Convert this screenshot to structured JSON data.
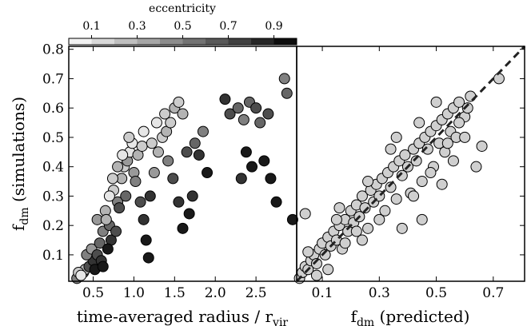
{
  "chart_data": [
    {
      "type": "scatter",
      "panel": "left",
      "xlabel": "time-averaged radius / r",
      "xlabel_sub": "vir",
      "ylabel": "f",
      "ylabel_sub": "dm",
      "ylabel_suffix": " (simulations)",
      "xlim": [
        0.2,
        3.0
      ],
      "ylim": [
        0.01,
        0.81
      ],
      "xticks": [
        "0.5",
        "1.0",
        "1.5",
        "2.0",
        "2.5"
      ],
      "xtick_values": [
        0.5,
        1.0,
        1.5,
        2.0,
        2.5
      ],
      "yticks": [
        "0.1",
        "0.2",
        "0.3",
        "0.4",
        "0.5",
        "0.6",
        "0.7",
        "0.8"
      ],
      "ytick_values": [
        0.1,
        0.2,
        0.3,
        0.4,
        0.5,
        0.6,
        0.7,
        0.8
      ],
      "grid": false,
      "points": [
        [
          0.3,
          0.02,
          0.5
        ],
        [
          0.38,
          0.04,
          0.6
        ],
        [
          0.4,
          0.05,
          0.3
        ],
        [
          0.45,
          0.06,
          0.7
        ],
        [
          0.5,
          0.08,
          0.8
        ],
        [
          0.42,
          0.1,
          0.5
        ],
        [
          0.48,
          0.12,
          0.4
        ],
        [
          0.55,
          0.1,
          0.7
        ],
        [
          0.6,
          0.08,
          0.8
        ],
        [
          0.52,
          0.05,
          0.9
        ],
        [
          0.58,
          0.14,
          0.6
        ],
        [
          0.62,
          0.18,
          0.5
        ],
        [
          0.55,
          0.22,
          0.4
        ],
        [
          0.65,
          0.25,
          0.3
        ],
        [
          0.7,
          0.2,
          0.6
        ],
        [
          0.72,
          0.15,
          0.8
        ],
        [
          0.68,
          0.12,
          0.9
        ],
        [
          0.78,
          0.18,
          0.7
        ],
        [
          0.8,
          0.28,
          0.5
        ],
        [
          0.75,
          0.32,
          0.2
        ],
        [
          0.85,
          0.36,
          0.3
        ],
        [
          0.88,
          0.4,
          0.2
        ],
        [
          0.92,
          0.42,
          0.4
        ],
        [
          0.95,
          0.45,
          0.1
        ],
        [
          0.98,
          0.48,
          0.1
        ],
        [
          0.9,
          0.3,
          0.6
        ],
        [
          0.82,
          0.26,
          0.7
        ],
        [
          1.0,
          0.38,
          0.4
        ],
        [
          1.05,
          0.44,
          0.3
        ],
        [
          1.1,
          0.47,
          0.2
        ],
        [
          1.02,
          0.35,
          0.5
        ],
        [
          1.08,
          0.28,
          0.7
        ],
        [
          1.12,
          0.22,
          0.8
        ],
        [
          1.15,
          0.15,
          0.9
        ],
        [
          1.18,
          0.09,
          0.9
        ],
        [
          1.2,
          0.3,
          0.8
        ],
        [
          1.25,
          0.38,
          0.4
        ],
        [
          1.3,
          0.45,
          0.3
        ],
        [
          1.35,
          0.5,
          0.2
        ],
        [
          1.4,
          0.52,
          0.3
        ],
        [
          1.45,
          0.55,
          0.2
        ],
        [
          1.5,
          0.6,
          0.3
        ],
        [
          1.55,
          0.62,
          0.2
        ],
        [
          1.42,
          0.42,
          0.5
        ],
        [
          1.48,
          0.36,
          0.7
        ],
        [
          1.55,
          0.28,
          0.8
        ],
        [
          1.6,
          0.19,
          0.9
        ],
        [
          1.68,
          0.24,
          0.9
        ],
        [
          1.72,
          0.3,
          0.8
        ],
        [
          1.65,
          0.45,
          0.7
        ],
        [
          1.75,
          0.48,
          0.6
        ],
        [
          1.85,
          0.52,
          0.5
        ],
        [
          1.8,
          0.44,
          0.8
        ],
        [
          1.9,
          0.38,
          0.9
        ],
        [
          2.12,
          0.63,
          0.8
        ],
        [
          2.18,
          0.58,
          0.7
        ],
        [
          2.28,
          0.6,
          0.6
        ],
        [
          2.35,
          0.56,
          0.5
        ],
        [
          2.42,
          0.62,
          0.6
        ],
        [
          2.5,
          0.6,
          0.7
        ],
        [
          2.55,
          0.55,
          0.6
        ],
        [
          2.65,
          0.58,
          0.7
        ],
        [
          2.38,
          0.45,
          0.9
        ],
        [
          2.45,
          0.4,
          0.9
        ],
        [
          2.32,
          0.36,
          0.8
        ],
        [
          2.6,
          0.42,
          0.9
        ],
        [
          2.68,
          0.36,
          0.9
        ],
        [
          2.75,
          0.28,
          0.9
        ],
        [
          2.85,
          0.7,
          0.5
        ],
        [
          2.88,
          0.65,
          0.6
        ],
        [
          2.95,
          0.22,
          0.9
        ],
        [
          0.32,
          0.04,
          0.2
        ],
        [
          0.35,
          0.03,
          0.1
        ],
        [
          0.62,
          0.06,
          0.9
        ],
        [
          0.66,
          0.22,
          0.3
        ],
        [
          0.7,
          0.3,
          0.1
        ],
        [
          0.74,
          0.36,
          0.2
        ],
        [
          0.8,
          0.4,
          0.3
        ],
        [
          0.86,
          0.44,
          0.1
        ],
        [
          0.94,
          0.5,
          0.2
        ],
        [
          1.12,
          0.52,
          0.1
        ],
        [
          1.22,
          0.48,
          0.2
        ],
        [
          1.28,
          0.55,
          0.1
        ],
        [
          1.38,
          0.58,
          0.2
        ],
        [
          1.6,
          0.58,
          0.3
        ]
      ]
    },
    {
      "type": "scatter",
      "panel": "right",
      "xlabel": "f",
      "xlabel_sub": "dm",
      "xlabel_suffix": " (predicted)",
      "xlim": [
        0.01,
        0.81
      ],
      "ylim": [
        0.01,
        0.81
      ],
      "xticks": [
        "0.1",
        "0.3",
        "0.5",
        "0.7"
      ],
      "xtick_values": [
        0.1,
        0.3,
        0.5,
        0.7
      ],
      "grid": false,
      "reference_line": "y = x, dashed",
      "points": [
        [
          0.02,
          0.02
        ],
        [
          0.03,
          0.04
        ],
        [
          0.04,
          0.06
        ],
        [
          0.05,
          0.05
        ],
        [
          0.06,
          0.08
        ],
        [
          0.07,
          0.1
        ],
        [
          0.08,
          0.07
        ],
        [
          0.09,
          0.12
        ],
        [
          0.1,
          0.14
        ],
        [
          0.11,
          0.1
        ],
        [
          0.12,
          0.16
        ],
        [
          0.13,
          0.13
        ],
        [
          0.14,
          0.18
        ],
        [
          0.15,
          0.15
        ],
        [
          0.16,
          0.2
        ],
        [
          0.17,
          0.12
        ],
        [
          0.18,
          0.22
        ],
        [
          0.19,
          0.18
        ],
        [
          0.2,
          0.25
        ],
        [
          0.21,
          0.21
        ],
        [
          0.22,
          0.27
        ],
        [
          0.23,
          0.23
        ],
        [
          0.24,
          0.3
        ],
        [
          0.25,
          0.26
        ],
        [
          0.26,
          0.19
        ],
        [
          0.27,
          0.32
        ],
        [
          0.28,
          0.28
        ],
        [
          0.29,
          0.34
        ],
        [
          0.3,
          0.3
        ],
        [
          0.31,
          0.36
        ],
        [
          0.32,
          0.25
        ],
        [
          0.33,
          0.38
        ],
        [
          0.34,
          0.33
        ],
        [
          0.35,
          0.4
        ],
        [
          0.36,
          0.29
        ],
        [
          0.37,
          0.42
        ],
        [
          0.38,
          0.37
        ],
        [
          0.39,
          0.44
        ],
        [
          0.4,
          0.4
        ],
        [
          0.41,
          0.31
        ],
        [
          0.42,
          0.46
        ],
        [
          0.43,
          0.42
        ],
        [
          0.44,
          0.48
        ],
        [
          0.45,
          0.35
        ],
        [
          0.46,
          0.5
        ],
        [
          0.47,
          0.46
        ],
        [
          0.48,
          0.52
        ],
        [
          0.49,
          0.4
        ],
        [
          0.5,
          0.54
        ],
        [
          0.51,
          0.48
        ],
        [
          0.52,
          0.56
        ],
        [
          0.53,
          0.45
        ],
        [
          0.54,
          0.58
        ],
        [
          0.55,
          0.52
        ],
        [
          0.56,
          0.6
        ],
        [
          0.57,
          0.5
        ],
        [
          0.58,
          0.62
        ],
        [
          0.6,
          0.57
        ],
        [
          0.62,
          0.64
        ],
        [
          0.64,
          0.4
        ],
        [
          0.66,
          0.47
        ],
        [
          0.72,
          0.7
        ],
        [
          0.05,
          0.11
        ],
        [
          0.08,
          0.03
        ],
        [
          0.12,
          0.05
        ],
        [
          0.15,
          0.22
        ],
        [
          0.18,
          0.14
        ],
        [
          0.22,
          0.18
        ],
        [
          0.26,
          0.35
        ],
        [
          0.3,
          0.22
        ],
        [
          0.34,
          0.46
        ],
        [
          0.38,
          0.19
        ],
        [
          0.42,
          0.3
        ],
        [
          0.45,
          0.22
        ],
        [
          0.48,
          0.38
        ],
        [
          0.52,
          0.34
        ],
        [
          0.56,
          0.42
        ],
        [
          0.6,
          0.5
        ],
        [
          0.04,
          0.24
        ],
        [
          0.16,
          0.26
        ],
        [
          0.24,
          0.15
        ],
        [
          0.36,
          0.5
        ],
        [
          0.44,
          0.55
        ],
        [
          0.5,
          0.62
        ],
        [
          0.54,
          0.48
        ],
        [
          0.58,
          0.55
        ],
        [
          0.61,
          0.6
        ]
      ]
    }
  ],
  "colorbar": {
    "label": "eccentricity",
    "range": [
      0.0,
      1.0
    ],
    "ticks": [
      "0.1",
      "0.3",
      "0.5",
      "0.7",
      "0.9"
    ],
    "tick_values": [
      0.1,
      0.3,
      0.5,
      0.7,
      0.9
    ],
    "steps": 10,
    "colormap": "white-to-black"
  }
}
